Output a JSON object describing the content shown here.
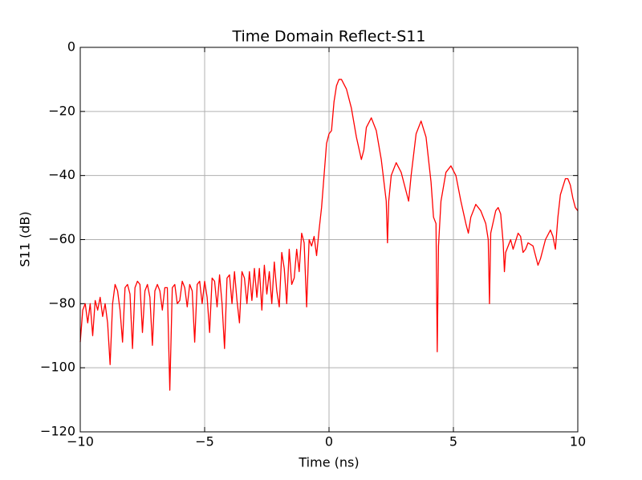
{
  "chart_data": {
    "type": "line",
    "title": "Time Domain Reflect-S11",
    "x_label": "Time (ns)",
    "y_label": "S11 (dB)",
    "xlim": [
      -10,
      10
    ],
    "ylim": [
      -120,
      0
    ],
    "xticks": [
      {
        "value": -10,
        "label": "−10"
      },
      {
        "value": -5,
        "label": "−5"
      },
      0,
      5,
      10
    ],
    "yticks": [
      {
        "value": -120,
        "label": "−120"
      },
      {
        "value": -100,
        "label": "−100"
      },
      {
        "value": -80,
        "label": "−80"
      },
      {
        "value": -60,
        "label": "−60"
      },
      {
        "value": -40,
        "label": "−40"
      },
      {
        "value": -20,
        "label": "−20"
      },
      0
    ],
    "grid": true,
    "series": [
      {
        "color": "#ff0000",
        "x": [
          -10.0,
          -9.9,
          -9.8,
          -9.7,
          -9.6,
          -9.5,
          -9.4,
          -9.3,
          -9.2,
          -9.1,
          -9.0,
          -8.9,
          -8.8,
          -8.7,
          -8.6,
          -8.5,
          -8.4,
          -8.3,
          -8.2,
          -8.1,
          -8.0,
          -7.9,
          -7.8,
          -7.7,
          -7.6,
          -7.5,
          -7.4,
          -7.3,
          -7.2,
          -7.1,
          -7.0,
          -6.9,
          -6.8,
          -6.7,
          -6.6,
          -6.5,
          -6.4,
          -6.3,
          -6.2,
          -6.1,
          -6.0,
          -5.9,
          -5.8,
          -5.7,
          -5.6,
          -5.5,
          -5.4,
          -5.3,
          -5.2,
          -5.1,
          -5.0,
          -4.9,
          -4.8,
          -4.7,
          -4.6,
          -4.5,
          -4.4,
          -4.3,
          -4.2,
          -4.1,
          -4.0,
          -3.9,
          -3.8,
          -3.7,
          -3.6,
          -3.5,
          -3.4,
          -3.3,
          -3.2,
          -3.1,
          -3.0,
          -2.9,
          -2.8,
          -2.7,
          -2.6,
          -2.5,
          -2.4,
          -2.3,
          -2.2,
          -2.1,
          -2.0,
          -1.9,
          -1.8,
          -1.7,
          -1.6,
          -1.5,
          -1.4,
          -1.3,
          -1.2,
          -1.1,
          -1.0,
          -0.9,
          -0.8,
          -0.7,
          -0.6,
          -0.5,
          -0.4,
          -0.3,
          -0.2,
          -0.1,
          0.0,
          0.1,
          0.2,
          0.3,
          0.4,
          0.5,
          0.7,
          0.9,
          1.1,
          1.3,
          1.4,
          1.5,
          1.7,
          1.9,
          2.1,
          2.3,
          2.35,
          2.4,
          2.5,
          2.7,
          2.9,
          3.1,
          3.2,
          3.3,
          3.5,
          3.7,
          3.9,
          4.1,
          4.2,
          4.3,
          4.35,
          4.4,
          4.5,
          4.7,
          4.9,
          5.1,
          5.3,
          5.5,
          5.6,
          5.7,
          5.9,
          6.1,
          6.3,
          6.4,
          6.45,
          6.5,
          6.7,
          6.8,
          6.9,
          7.0,
          7.05,
          7.1,
          7.3,
          7.4,
          7.6,
          7.7,
          7.8,
          7.9,
          8.0,
          8.2,
          8.4,
          8.5,
          8.7,
          8.9,
          9.0,
          9.1,
          9.2,
          9.3,
          9.5,
          9.6,
          9.7,
          9.8,
          9.9,
          10.0
        ],
        "values": [
          -92,
          -82,
          -80,
          -86,
          -80,
          -90,
          -79,
          -82,
          -78,
          -84,
          -80,
          -86,
          -99,
          -80,
          -74,
          -76,
          -82,
          -92,
          -75,
          -74,
          -77,
          -94,
          -75,
          -73,
          -74,
          -89,
          -76,
          -74,
          -78,
          -93,
          -76,
          -74,
          -76,
          -82,
          -75,
          -75,
          -107,
          -75,
          -74,
          -80,
          -79,
          -73,
          -75,
          -81,
          -74,
          -76,
          -92,
          -74,
          -73,
          -80,
          -73,
          -78,
          -89,
          -72,
          -73,
          -81,
          -71,
          -80,
          -94,
          -72,
          -71,
          -80,
          -70,
          -79,
          -86,
          -70,
          -72,
          -80,
          -70,
          -79,
          -69,
          -78,
          -69,
          -82,
          -68,
          -77,
          -70,
          -80,
          -67,
          -76,
          -81,
          -64,
          -69,
          -80,
          -63,
          -74,
          -72,
          -63,
          -70,
          -58,
          -61,
          -81,
          -60,
          -62,
          -59,
          -65,
          -57,
          -50,
          -40,
          -30,
          -27,
          -26,
          -17,
          -12,
          -10,
          -10,
          -13,
          -19,
          -28,
          -35,
          -32,
          -25,
          -22,
          -26,
          -35,
          -48,
          -61,
          -48,
          -40,
          -36,
          -39,
          -45,
          -48,
          -40,
          -27,
          -23,
          -28,
          -42,
          -53,
          -55,
          -95,
          -62,
          -48,
          -39,
          -37,
          -40,
          -48,
          -55,
          -58,
          -53,
          -49,
          -51,
          -55,
          -60,
          -80,
          -58,
          -51,
          -50,
          -52,
          -61,
          -70,
          -64,
          -60,
          -63,
          -58,
          -59,
          -64,
          -63,
          -61,
          -62,
          -68,
          -66,
          -60,
          -57,
          -59,
          -63,
          -53,
          -46,
          -41,
          -41,
          -43,
          -47,
          -50,
          -51
        ]
      }
    ]
  }
}
